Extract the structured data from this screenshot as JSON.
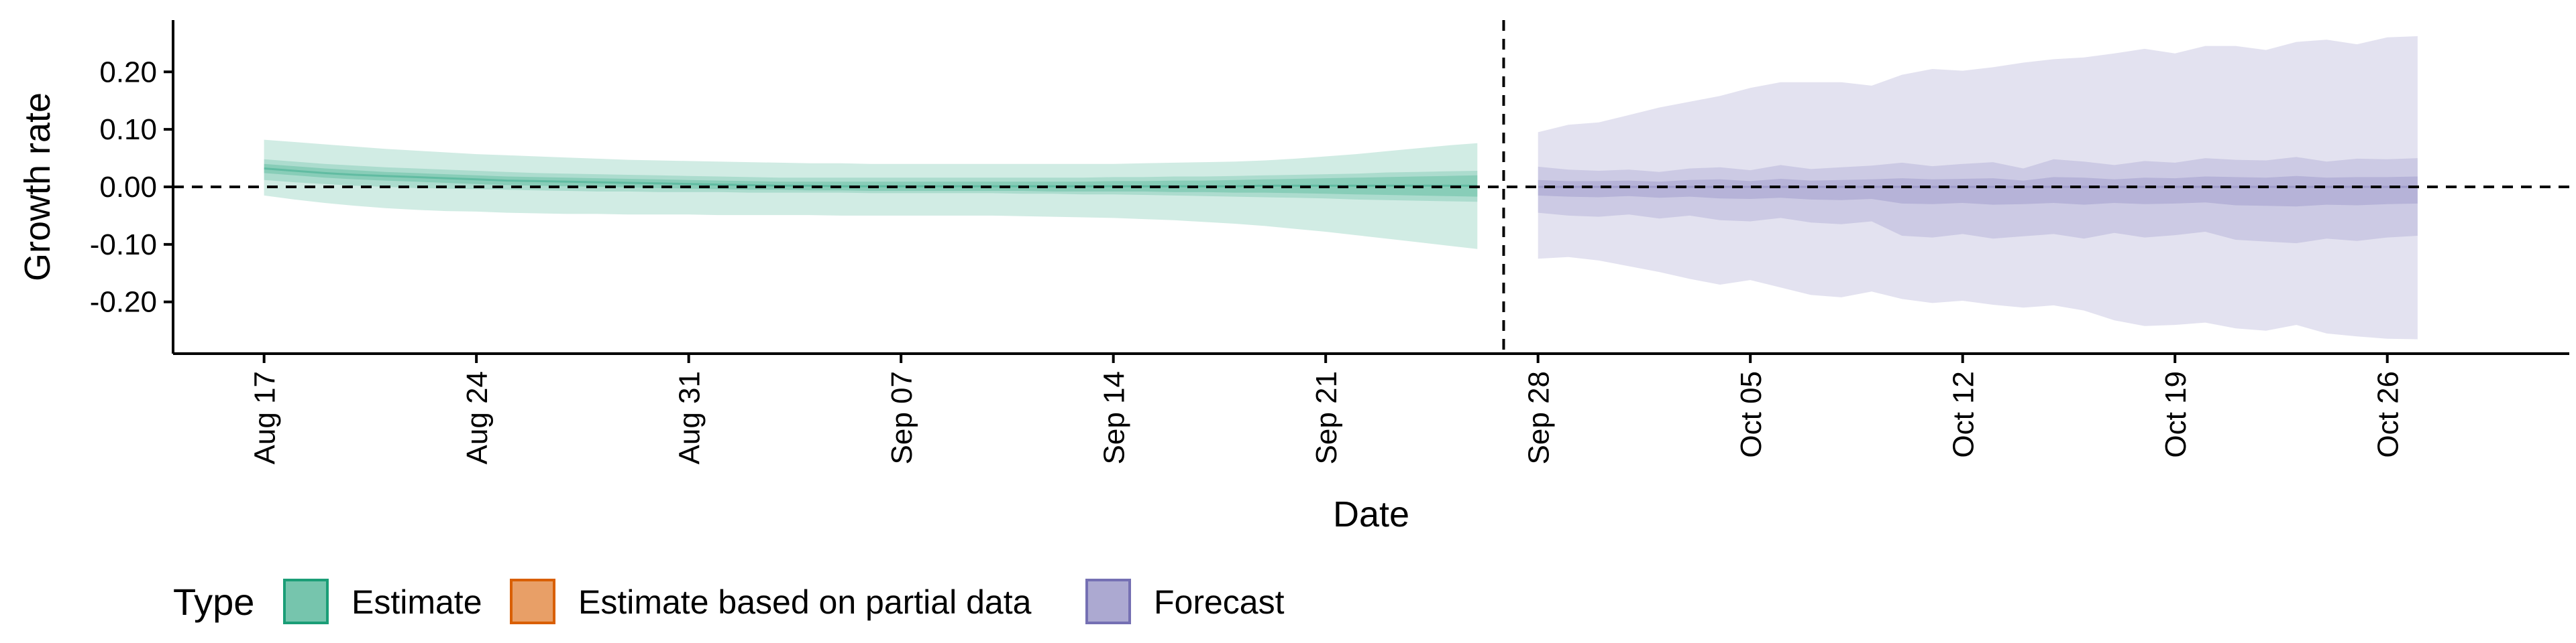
{
  "chart_data": {
    "type": "area",
    "xlabel": "Date",
    "ylabel": "Growth rate",
    "ylim": [
      -0.29,
      0.29
    ],
    "y_ticks": [
      {
        "value": 0.2,
        "label": "0.20"
      },
      {
        "value": 0.1,
        "label": "0.10"
      },
      {
        "value": 0.0,
        "label": "0.00"
      },
      {
        "value": -0.1,
        "label": "-0.10"
      },
      {
        "value": -0.2,
        "label": "-0.20"
      }
    ],
    "x_range_day": [
      0,
      79
    ],
    "x_ticks": [
      {
        "day": 3,
        "label": "Aug 17"
      },
      {
        "day": 10,
        "label": "Aug 24"
      },
      {
        "day": 17,
        "label": "Aug 31"
      },
      {
        "day": 24,
        "label": "Sep 07"
      },
      {
        "day": 31,
        "label": "Sep 14"
      },
      {
        "day": 38,
        "label": "Sep 21"
      },
      {
        "day": 45,
        "label": "Sep 28"
      },
      {
        "day": 52,
        "label": "Oct 05"
      },
      {
        "day": 59,
        "label": "Oct 12"
      },
      {
        "day": 66,
        "label": "Oct 19"
      },
      {
        "day": 73,
        "label": "Oct 26"
      }
    ],
    "reference_hline": 0.0,
    "reference_vline_day": 44,
    "series": [
      {
        "name": "Estimate",
        "type_key": "estimate",
        "day_start": 3,
        "day_end": 43,
        "median": [
          0.032,
          0.028,
          0.024,
          0.021,
          0.019,
          0.017,
          0.015,
          0.013,
          0.011,
          0.01,
          0.009,
          0.008,
          0.007,
          0.006,
          0.005,
          0.004,
          0.003,
          0.002,
          0.002,
          0.001,
          0.001,
          0.001,
          0.001,
          0.001,
          0.001,
          0.001,
          0.001,
          0.001,
          0.001,
          0.001,
          0.001,
          0.001,
          0.001,
          0.002,
          0.002,
          0.002,
          0.002,
          0.002,
          0.002,
          0.002,
          0.002
        ],
        "ci90_upper": [
          0.082,
          0.078,
          0.074,
          0.07,
          0.066,
          0.063,
          0.06,
          0.057,
          0.055,
          0.053,
          0.051,
          0.049,
          0.047,
          0.046,
          0.045,
          0.044,
          0.043,
          0.042,
          0.041,
          0.041,
          0.04,
          0.04,
          0.04,
          0.04,
          0.04,
          0.04,
          0.04,
          0.04,
          0.04,
          0.041,
          0.042,
          0.043,
          0.044,
          0.046,
          0.049,
          0.053,
          0.057,
          0.062,
          0.067,
          0.072,
          0.076
        ],
        "ci90_lower": [
          -0.015,
          -0.022,
          -0.028,
          -0.033,
          -0.037,
          -0.04,
          -0.042,
          -0.043,
          -0.045,
          -0.046,
          -0.047,
          -0.047,
          -0.048,
          -0.048,
          -0.048,
          -0.049,
          -0.049,
          -0.049,
          -0.049,
          -0.05,
          -0.05,
          -0.05,
          -0.05,
          -0.05,
          -0.05,
          -0.051,
          -0.052,
          -0.053,
          -0.054,
          -0.056,
          -0.058,
          -0.061,
          -0.064,
          -0.068,
          -0.073,
          -0.078,
          -0.084,
          -0.09,
          -0.096,
          -0.102,
          -0.108
        ],
        "ci50_upper": [
          0.048,
          0.044,
          0.04,
          0.037,
          0.034,
          0.032,
          0.03,
          0.028,
          0.026,
          0.024,
          0.023,
          0.022,
          0.021,
          0.02,
          0.019,
          0.018,
          0.017,
          0.016,
          0.016,
          0.016,
          0.016,
          0.016,
          0.016,
          0.016,
          0.016,
          0.016,
          0.016,
          0.016,
          0.017,
          0.017,
          0.018,
          0.018,
          0.019,
          0.02,
          0.021,
          0.022,
          0.023,
          0.025,
          0.026,
          0.027,
          0.028
        ],
        "ci50_lower": [
          0.012,
          0.008,
          0.005,
          0.002,
          0.0,
          -0.002,
          -0.003,
          -0.004,
          -0.005,
          -0.006,
          -0.007,
          -0.008,
          -0.008,
          -0.009,
          -0.009,
          -0.009,
          -0.01,
          -0.01,
          -0.01,
          -0.01,
          -0.011,
          -0.011,
          -0.011,
          -0.011,
          -0.011,
          -0.012,
          -0.012,
          -0.013,
          -0.013,
          -0.014,
          -0.015,
          -0.016,
          -0.017,
          -0.018,
          -0.019,
          -0.02,
          -0.022,
          -0.023,
          -0.024,
          -0.025,
          -0.026
        ],
        "ci20_upper": [
          0.04,
          0.036,
          0.032,
          0.029,
          0.026,
          0.024,
          0.022,
          0.02,
          0.018,
          0.017,
          0.016,
          0.015,
          0.014,
          0.013,
          0.012,
          0.011,
          0.01,
          0.009,
          0.009,
          0.009,
          0.009,
          0.009,
          0.009,
          0.009,
          0.009,
          0.009,
          0.009,
          0.009,
          0.01,
          0.01,
          0.011,
          0.011,
          0.012,
          0.013,
          0.014,
          0.015,
          0.016,
          0.017,
          0.018,
          0.019,
          0.02
        ],
        "ci20_lower": [
          0.024,
          0.02,
          0.016,
          0.013,
          0.011,
          0.009,
          0.007,
          0.005,
          0.003,
          0.002,
          0.001,
          0.0,
          -0.001,
          -0.002,
          -0.003,
          -0.004,
          -0.005,
          -0.005,
          -0.006,
          -0.006,
          -0.007,
          -0.007,
          -0.007,
          -0.007,
          -0.007,
          -0.007,
          -0.008,
          -0.008,
          -0.008,
          -0.008,
          -0.009,
          -0.009,
          -0.01,
          -0.01,
          -0.011,
          -0.012,
          -0.013,
          -0.014,
          -0.015,
          -0.016,
          -0.017
        ]
      },
      {
        "name": "Forecast",
        "type_key": "forecast",
        "day_start": 45,
        "day_end": 74,
        "median": [
          0.0,
          0.0,
          0.0,
          0.0,
          0.0,
          0.0,
          0.0,
          0.0,
          0.0,
          0.0,
          0.0,
          0.0,
          0.0,
          0.0,
          0.0,
          0.0,
          0.0,
          0.0,
          0.0,
          0.0,
          0.0,
          0.0,
          0.0,
          0.0,
          0.0,
          0.0,
          0.0,
          0.0,
          0.0,
          0.0
        ],
        "ci90_upper": [
          0.095,
          0.108,
          0.112,
          0.125,
          0.138,
          0.148,
          0.158,
          0.172,
          0.182,
          0.182,
          0.182,
          0.176,
          0.195,
          0.205,
          0.202,
          0.208,
          0.216,
          0.222,
          0.225,
          0.232,
          0.24,
          0.232,
          0.245,
          0.245,
          0.238,
          0.252,
          0.256,
          0.248,
          0.26,
          0.262
        ],
        "ci90_lower": [
          -0.125,
          -0.122,
          -0.128,
          -0.138,
          -0.148,
          -0.16,
          -0.17,
          -0.162,
          -0.175,
          -0.188,
          -0.192,
          -0.182,
          -0.195,
          -0.202,
          -0.198,
          -0.205,
          -0.21,
          -0.206,
          -0.215,
          -0.232,
          -0.242,
          -0.24,
          -0.236,
          -0.246,
          -0.25,
          -0.24,
          -0.255,
          -0.26,
          -0.264,
          -0.265
        ],
        "ci50_upper": [
          0.035,
          0.03,
          0.028,
          0.03,
          0.026,
          0.032,
          0.034,
          0.029,
          0.038,
          0.031,
          0.034,
          0.037,
          0.042,
          0.036,
          0.04,
          0.043,
          0.032,
          0.048,
          0.044,
          0.038,
          0.045,
          0.042,
          0.05,
          0.047,
          0.046,
          0.052,
          0.044,
          0.049,
          0.048,
          0.05
        ],
        "ci50_lower": [
          -0.045,
          -0.05,
          -0.052,
          -0.048,
          -0.055,
          -0.05,
          -0.058,
          -0.06,
          -0.054,
          -0.062,
          -0.065,
          -0.06,
          -0.085,
          -0.088,
          -0.082,
          -0.09,
          -0.086,
          -0.082,
          -0.09,
          -0.08,
          -0.088,
          -0.084,
          -0.078,
          -0.092,
          -0.095,
          -0.098,
          -0.09,
          -0.094,
          -0.088,
          -0.085
        ],
        "ci20_upper": [
          0.012,
          0.01,
          0.01,
          0.011,
          0.009,
          0.012,
          0.013,
          0.01,
          0.014,
          0.011,
          0.012,
          0.013,
          0.015,
          0.013,
          0.014,
          0.015,
          0.011,
          0.017,
          0.016,
          0.013,
          0.016,
          0.015,
          0.018,
          0.017,
          0.016,
          0.019,
          0.016,
          0.017,
          0.017,
          0.018
        ],
        "ci20_lower": [
          -0.015,
          -0.017,
          -0.018,
          -0.016,
          -0.019,
          -0.017,
          -0.02,
          -0.021,
          -0.019,
          -0.022,
          -0.023,
          -0.021,
          -0.029,
          -0.03,
          -0.028,
          -0.031,
          -0.03,
          -0.028,
          -0.031,
          -0.028,
          -0.03,
          -0.029,
          -0.027,
          -0.032,
          -0.033,
          -0.034,
          -0.031,
          -0.032,
          -0.03,
          -0.029
        ]
      }
    ],
    "legend": {
      "title": "Type",
      "position": "bottom-left",
      "entries": [
        {
          "key": "estimate",
          "label": "Estimate"
        },
        {
          "key": "partial",
          "label": "Estimate based on partial data"
        },
        {
          "key": "forecast",
          "label": "Forecast"
        }
      ]
    },
    "colors": {
      "estimate": "#1b9e77",
      "partial": "#d95f02",
      "forecast": "#7570b3",
      "axis": "#000000"
    }
  }
}
